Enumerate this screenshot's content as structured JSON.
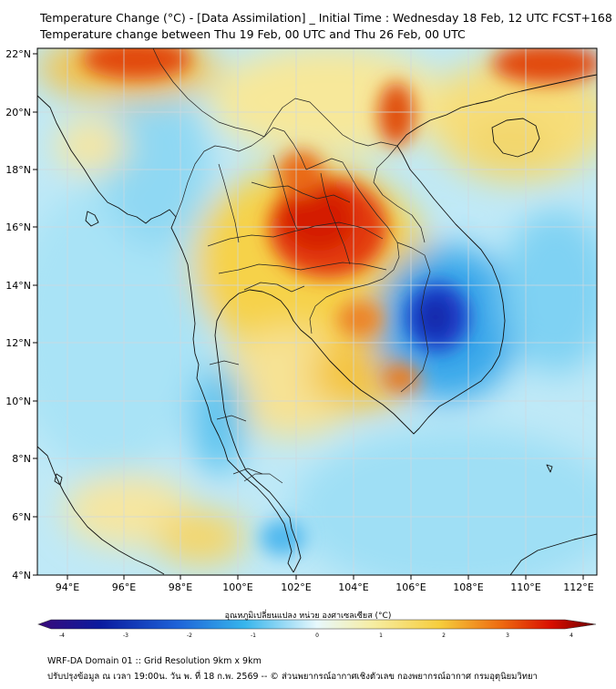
{
  "header": {
    "title_line1": "Temperature Change (°C) - [Data Assimilation] _ Initial Time : Wednesday 18 Feb, 12 UTC FCST+168",
    "title_line2": "Temperature change between Thu 19 Feb, 00 UTC and Thu 26 Feb, 00 UTC"
  },
  "map": {
    "lat_labels": [
      "22°N",
      "20°N",
      "18°N",
      "16°N",
      "14°N",
      "12°N",
      "10°N",
      "8°N",
      "6°N",
      "4°N"
    ],
    "lon_labels": [
      "94°E",
      "96°E",
      "98°E",
      "100°E",
      "102°E",
      "104°E",
      "106°E",
      "108°E",
      "110°E",
      "112°E"
    ],
    "field": "temperature-change",
    "notable_regions": [
      {
        "name": "northeast-thailand-warm",
        "value": 3.2
      },
      {
        "name": "south-china-warm",
        "value": 3.5
      },
      {
        "name": "myanmar-north-warm",
        "value": 3.0
      },
      {
        "name": "cambodia-vietnam-cool",
        "value": -2.5
      }
    ]
  },
  "colorbar": {
    "label": "อุณหภูมิเปลี่ยนแปลง หน่วย องศาเซลเซียส (°C)",
    "ticks": [
      "-4",
      "-3",
      "-2",
      "-1",
      "0",
      "1",
      "2",
      "3",
      "4"
    ],
    "colors": [
      "#3a0a7a",
      "#0a1a9e",
      "#1e63d8",
      "#37b5ec",
      "#e8f8fc",
      "#f6eda2",
      "#f6cd3c",
      "#ee6a10",
      "#d80e00",
      "#6b0000"
    ]
  },
  "footer": {
    "line1": "WRF-DA Domain 01 :: Grid Resolution 9km x 9km",
    "line2": "ปรับปรุงข้อมูล ณ เวลา 19:00น. วัน พ. ที่ 18 ก.พ. 2569 -- © ส่วนพยากรณ์อากาศเชิงตัวเลข กองพยากรณ์อากาศ กรมอุตุนิยมวิทยา"
  }
}
